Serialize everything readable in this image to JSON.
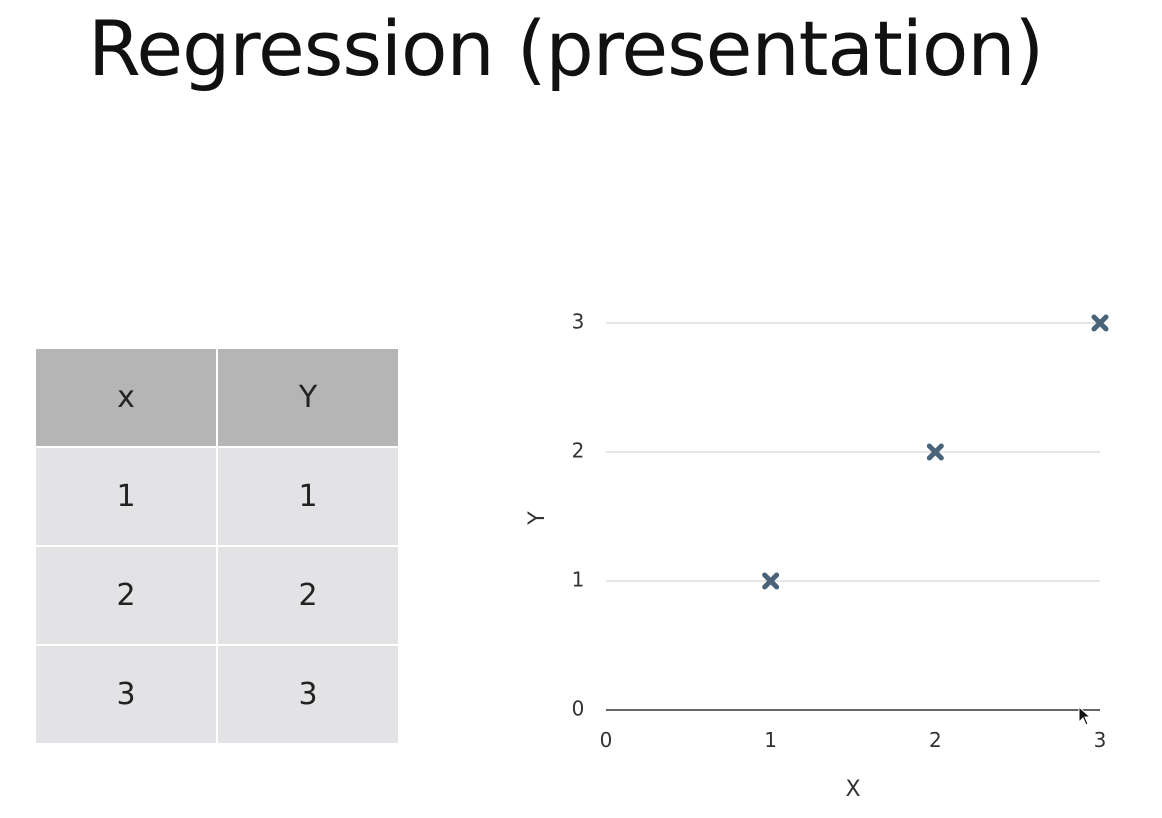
{
  "slide": {
    "title": "Regression (presentation)"
  },
  "table": {
    "headers": [
      "x",
      "Y"
    ],
    "rows": [
      [
        "1",
        "1"
      ],
      [
        "2",
        "2"
      ],
      [
        "3",
        "3"
      ]
    ]
  },
  "chart_data": {
    "type": "scatter",
    "x": [
      1,
      2,
      3
    ],
    "y": [
      1,
      2,
      3
    ],
    "xlabel": "X",
    "ylabel": "Y",
    "xlim": [
      0,
      3
    ],
    "ylim": [
      0,
      3
    ],
    "xticks": [
      "0",
      "1",
      "2",
      "3"
    ],
    "yticks": [
      "0",
      "1",
      "2",
      "3"
    ],
    "grid": "horizontal",
    "marker": "x",
    "marker_color": "#4a6378",
    "grid_color": "#d6d6d6",
    "axis_color": "#333333"
  }
}
